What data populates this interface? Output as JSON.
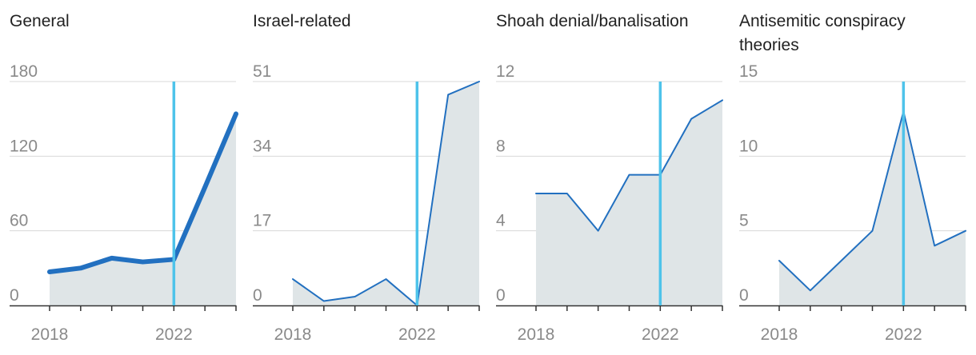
{
  "colors": {
    "marker": "#4ec3ea",
    "line": "#2270c0",
    "area": "#dfe5e7",
    "grid": "#d8d8d8",
    "axis": "#333333"
  },
  "chart_data": [
    {
      "type": "area",
      "title": "General",
      "x": [
        2018,
        2019,
        2020,
        2021,
        2022,
        2023,
        2024
      ],
      "values": [
        27,
        30,
        38,
        35,
        37,
        95,
        154
      ],
      "ylim": [
        0,
        180
      ],
      "yticks": [
        "0",
        "60",
        "120",
        "180"
      ],
      "xticks": [
        2018,
        2022
      ],
      "marker_year": 2022,
      "bold": true
    },
    {
      "type": "area",
      "title": "Israel-related",
      "x": [
        2018,
        2019,
        2020,
        2021,
        2022,
        2023,
        2024
      ],
      "values": [
        6,
        1,
        2,
        6,
        0,
        48,
        51
      ],
      "ylim": [
        0,
        51
      ],
      "yticks": [
        "0",
        "17",
        "34",
        "51"
      ],
      "xticks": [
        2018,
        2022
      ],
      "marker_year": 2022,
      "bold": false
    },
    {
      "type": "area",
      "title": "Shoah denial/banalisation",
      "x": [
        2018,
        2019,
        2020,
        2021,
        2022,
        2023,
        2024
      ],
      "values": [
        6,
        6,
        4,
        7,
        7,
        10,
        11
      ],
      "ylim": [
        0,
        12
      ],
      "yticks": [
        "0",
        "4",
        "8",
        "12"
      ],
      "xticks": [
        2018,
        2022
      ],
      "marker_year": 2022,
      "bold": false
    },
    {
      "type": "area",
      "title": "Antisemitic conspiracy theories",
      "x": [
        2018,
        2019,
        2020,
        2021,
        2022,
        2023,
        2024
      ],
      "values": [
        3,
        1,
        3,
        5,
        13,
        4,
        5
      ],
      "ylim": [
        0,
        15
      ],
      "yticks": [
        "0",
        "5",
        "10",
        "15"
      ],
      "xticks": [
        2018,
        2022
      ],
      "marker_year": 2022,
      "bold": false
    }
  ]
}
